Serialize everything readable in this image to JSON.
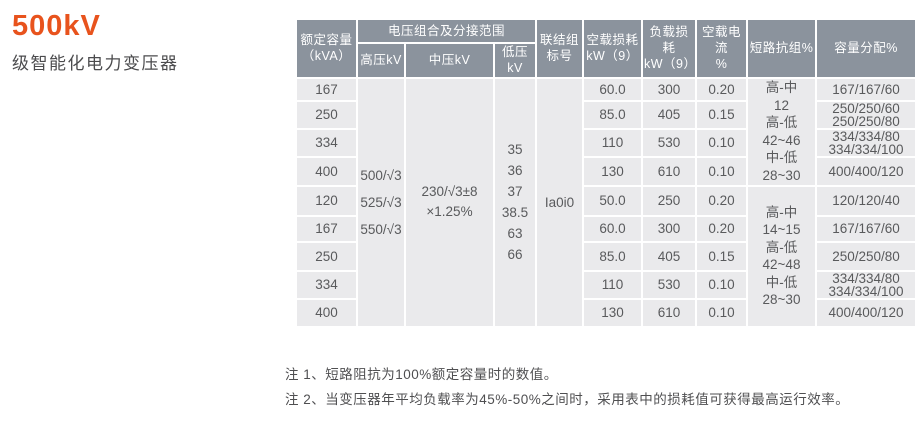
{
  "page": {
    "title": "500kV",
    "subtitle": "级智能化电力变压器"
  },
  "colors": {
    "accent_orange": "#e8531d",
    "header_bg": "#8b939d",
    "header_text": "#ffffff",
    "cell_bg": "#eaeaec",
    "cell_text": "#595a5c"
  },
  "table": {
    "header": {
      "rated_capacity_lines": [
        "额定容量",
        "（kVA）"
      ],
      "voltage_group": "电压组合及分接范围",
      "hv": "高压kV",
      "mv": "中压kV",
      "lv": "低压kV",
      "vector_group_lines": [
        "联结组",
        "标号"
      ],
      "no_load_loss_lines": [
        "空载损耗",
        "kW（9）"
      ],
      "load_loss_lines": [
        "负载损耗",
        "kW（9）"
      ],
      "no_load_current_lines": [
        "空载电流",
        "%"
      ],
      "impedance": "短路抗组%",
      "capacity_alloc": "容量分配%"
    },
    "merged": {
      "hv_lines": [
        "500/√3",
        "525/√3",
        "550/√3"
      ],
      "mv_lines": [
        "230/√3±8",
        "×1.25%"
      ],
      "lv_lines": [
        "35",
        "36",
        "37",
        "38.5",
        "63",
        "66"
      ],
      "vector_group_value": "Ia0i0",
      "impedance_top_lines": [
        "高-中",
        "12",
        "高-低",
        "42~46",
        "中-低",
        "28~30"
      ],
      "impedance_bottom_lines": [
        "高-中",
        "14~15",
        "高-低",
        "42~48",
        "中-低",
        "28~30"
      ]
    },
    "rows": [
      {
        "capacity": "167",
        "no_load_loss": "60.0",
        "load_loss": "300",
        "no_load_current": "0.20",
        "alloc": [
          "167/167/60"
        ]
      },
      {
        "capacity": "250",
        "no_load_loss": "85.0",
        "load_loss": "405",
        "no_load_current": "0.15",
        "alloc": [
          "250/250/60",
          "250/250/80"
        ]
      },
      {
        "capacity": "334",
        "no_load_loss": "110",
        "load_loss": "530",
        "no_load_current": "0.10",
        "alloc": [
          "334/334/80",
          "334/334/100"
        ]
      },
      {
        "capacity": "400",
        "no_load_loss": "130",
        "load_loss": "610",
        "no_load_current": "0.10",
        "alloc": [
          "400/400/120"
        ]
      },
      {
        "capacity": "120",
        "no_load_loss": "50.0",
        "load_loss": "250",
        "no_load_current": "0.20",
        "alloc": [
          "120/120/40"
        ]
      },
      {
        "capacity": "167",
        "no_load_loss": "60.0",
        "load_loss": "300",
        "no_load_current": "0.20",
        "alloc": [
          "167/167/60"
        ]
      },
      {
        "capacity": "250",
        "no_load_loss": "85.0",
        "load_loss": "405",
        "no_load_current": "0.15",
        "alloc": [
          "250/250/80"
        ]
      },
      {
        "capacity": "334",
        "no_load_loss": "110",
        "load_loss": "530",
        "no_load_current": "0.10",
        "alloc": [
          "334/334/80",
          "334/334/100"
        ]
      },
      {
        "capacity": "400",
        "no_load_loss": "130",
        "load_loss": "610",
        "no_load_current": "0.10",
        "alloc": [
          "400/400/120"
        ]
      }
    ]
  },
  "notes": [
    "注 1、短路阻抗为100%额定容量时的数值。",
    "注 2、当变压器年平均负载率为45%-50%之间时，采用表中的损耗值可获得最高运行效率。"
  ]
}
